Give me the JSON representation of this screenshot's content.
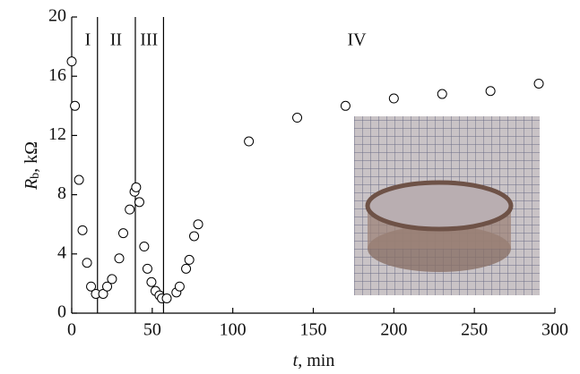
{
  "chart_data": {
    "type": "scatter",
    "x": [
      0,
      2,
      4.5,
      6.7,
      9.5,
      12,
      15,
      19.5,
      22,
      25,
      29.5,
      32,
      36,
      39,
      40,
      42,
      45,
      47,
      49.5,
      52,
      54.5,
      56,
      59,
      65,
      67,
      71,
      73,
      76,
      78.5,
      110,
      140,
      170,
      200,
      230,
      260,
      290
    ],
    "values": [
      17,
      14,
      9,
      5.6,
      3.4,
      1.8,
      1.3,
      1.3,
      1.8,
      2.3,
      3.7,
      5.4,
      7.0,
      8.2,
      8.5,
      7.5,
      4.5,
      3.0,
      2.1,
      1.5,
      1.2,
      1.0,
      1.0,
      1.4,
      1.8,
      3.0,
      3.6,
      5.2,
      6.0,
      11.6,
      13.2,
      14.0,
      14.5,
      14.8,
      15.0,
      15.5
    ],
    "xlim": [
      0,
      300
    ],
    "xticks": [
      0,
      50,
      100,
      150,
      200,
      250,
      300
    ],
    "ylim": [
      0,
      20
    ],
    "yticks": [
      0,
      4,
      8,
      12,
      16,
      20
    ],
    "xlabel": {
      "symbol": "t",
      "unit": ", min"
    },
    "ylabel": {
      "symbol": "R",
      "subscript": "b",
      "unit": ", kΩ"
    },
    "vlines": [
      16,
      39.5,
      57
    ],
    "annotations": [
      {
        "text": "I",
        "x": 10
      },
      {
        "text": "II",
        "x": 27.5
      },
      {
        "text": "III",
        "x": 48
      },
      {
        "text": "IV",
        "x": 177
      }
    ],
    "marker_color": "#000"
  }
}
